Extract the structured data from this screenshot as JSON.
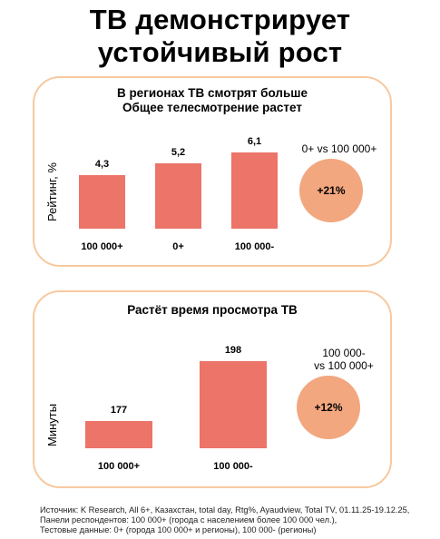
{
  "title": {
    "line1": "ТВ демонстрирует",
    "line2": "устойчивый рост"
  },
  "panel1": {
    "title_line1": "В регионах ТВ смотрят больше",
    "title_line2": "Общее телесмотрение растет",
    "comparison_label": "0+ vs 100 000+",
    "growth_value": "+21%"
  },
  "panel2": {
    "title": "Растёт время просмотра ТВ",
    "comparison_line1": "100 000-",
    "comparison_line2": "vs 100 000+",
    "growth_value": "+12%"
  },
  "chart_data": [
    {
      "type": "bar",
      "ylabel": "Рейтинг, %",
      "categories": [
        "100 000+",
        "0+",
        "100 000-"
      ],
      "values": [
        4.3,
        5.2,
        6.1
      ],
      "value_labels": [
        "4,3",
        "5,2",
        "6,1"
      ],
      "ylim": [
        0,
        6.1
      ],
      "color": "#ec7468"
    },
    {
      "type": "bar",
      "ylabel": "Минуты",
      "categories": [
        "100 000+",
        "100 000-"
      ],
      "values": [
        177,
        198
      ],
      "value_labels": [
        "177",
        "198"
      ],
      "ylim": [
        150,
        198
      ],
      "color": "#ec7468"
    }
  ],
  "footnote": {
    "line1": "Источник: K Research, All 6+, Казахстан, total day, Rtg%, Ayaudview, Total TV, 01.11.25-19.12.25,",
    "line2": "Панели респондентов: 100 000+ (города с населением более 100 000 чел.),",
    "line3": "Тестовые данные: 0+ (города 100 000+ и регионы), 100 000- (регионы)"
  },
  "colors": {
    "bar": "#ec7468",
    "circle": "#f2a77f",
    "panel_border": "#f7c9a0"
  }
}
